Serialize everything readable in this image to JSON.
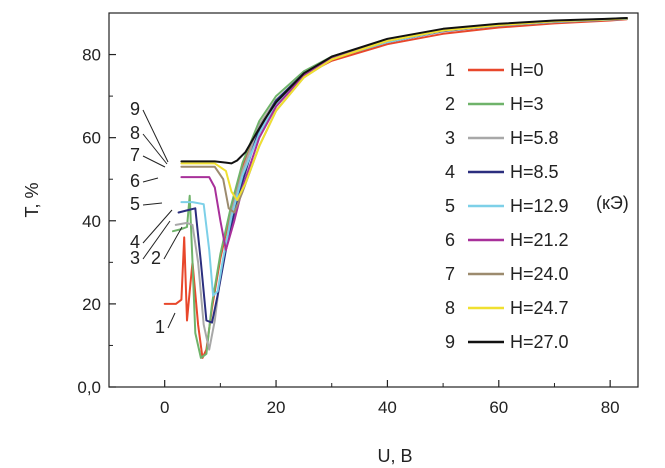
{
  "chart_data": {
    "type": "line",
    "title": "",
    "xlabel": "U, B",
    "ylabel": "T, %",
    "xlim": [
      -10,
      85
    ],
    "ylim": [
      0,
      90
    ],
    "x_ticks": [
      0,
      20,
      40,
      60,
      80
    ],
    "y_ticks": [
      0,
      20,
      40,
      60,
      80
    ],
    "x_tick_labels": [
      "0",
      "20",
      "40",
      "60",
      "80"
    ],
    "y_tick_labels": [
      "0,0",
      "20",
      "40",
      "60",
      "80"
    ],
    "unit_note": "(кЭ)",
    "grid": false,
    "legend_position": "right",
    "series": [
      {
        "name": "H=0",
        "number": "1",
        "color": "#e8472b",
        "x": [
          0,
          2,
          3,
          3.5,
          4,
          4.5,
          5,
          6,
          6.8,
          7.5,
          8.5,
          10,
          12,
          14,
          17,
          20,
          25,
          30,
          40,
          50,
          60,
          70,
          80,
          83
        ],
        "y": [
          20,
          20,
          21,
          36,
          16,
          23,
          30,
          15,
          7,
          9,
          19,
          31,
          43,
          53,
          63,
          69,
          75,
          78.5,
          82.5,
          85,
          86.5,
          87.5,
          88.2,
          88.5
        ]
      },
      {
        "name": "H=3",
        "number": "2",
        "color": "#6fb36a",
        "x": [
          1.5,
          3,
          4,
          4.5,
          5,
          5.5,
          6.5,
          7.5,
          8.5,
          10,
          12,
          14,
          17,
          20,
          25,
          30,
          40,
          50,
          60,
          70,
          80,
          83
        ],
        "y": [
          37.5,
          38,
          38.5,
          46,
          30,
          13,
          7,
          8,
          20,
          32,
          44,
          54,
          64,
          70,
          76,
          79.5,
          83.5,
          86,
          87.2,
          88,
          88.6,
          88.8
        ]
      },
      {
        "name": "H=5.8",
        "number": "3",
        "color": "#a8a8a8",
        "x": [
          2,
          4,
          5,
          6,
          7,
          8,
          9,
          10,
          12,
          14,
          17,
          20,
          25,
          30,
          40,
          50,
          60,
          70,
          80,
          83
        ],
        "y": [
          39,
          39.5,
          39,
          30,
          15,
          9,
          16,
          27,
          42,
          52,
          63,
          69,
          75.5,
          79,
          83,
          85.7,
          87,
          87.8,
          88.4,
          88.6
        ]
      },
      {
        "name": "H=8.5",
        "number": "4",
        "color": "#2b2e7e",
        "x": [
          2.5,
          4,
          5.5,
          6.5,
          7.5,
          8.5,
          9.5,
          11,
          13,
          15,
          17,
          20,
          25,
          30,
          40,
          50,
          60,
          70,
          80,
          83
        ],
        "y": [
          42,
          42.5,
          43,
          30,
          16,
          15.5,
          22,
          33,
          45,
          54,
          62,
          69,
          75.5,
          79,
          83,
          85.6,
          87,
          87.9,
          88.4,
          88.6
        ]
      },
      {
        "name": "H=12.9",
        "number": "5",
        "color": "#7dd0e8",
        "x": [
          3,
          5,
          7,
          8,
          8.7,
          9.5,
          10.5,
          12,
          14,
          17,
          20,
          25,
          30,
          40,
          50,
          60,
          70,
          80,
          83
        ],
        "y": [
          44.5,
          44.5,
          44,
          33,
          22,
          23,
          31,
          41,
          51,
          61,
          68,
          75,
          79,
          83,
          85.7,
          87,
          87.9,
          88.4,
          88.6
        ]
      },
      {
        "name": "H=21.2",
        "number": "6",
        "color": "#a8309a",
        "x": [
          3,
          6,
          8,
          9,
          10,
          11,
          12.5,
          14,
          17,
          20,
          25,
          30,
          40,
          50,
          60,
          70,
          80,
          83
        ],
        "y": [
          50.5,
          50.5,
          50.5,
          48,
          40,
          33,
          40,
          48,
          60,
          67.5,
          75,
          79,
          83.3,
          85.8,
          87.1,
          88,
          88.5,
          88.7
        ]
      },
      {
        "name": "H=24.0",
        "number": "7",
        "color": "#9c8b6e",
        "x": [
          3,
          6,
          9,
          10.5,
          11.5,
          12.5,
          14,
          17,
          20,
          25,
          30,
          40,
          50,
          60,
          70,
          80,
          83
        ],
        "y": [
          53,
          53,
          53,
          50,
          43,
          42,
          47,
          58,
          66.5,
          74.5,
          78.8,
          83.3,
          85.8,
          87.1,
          88,
          88.5,
          88.7
        ]
      },
      {
        "name": "H=24.7",
        "number": "8",
        "color": "#f0e030",
        "x": [
          3,
          6,
          9,
          11,
          12,
          13,
          14.5,
          17,
          20,
          25,
          30,
          40,
          50,
          60,
          70,
          80,
          83
        ],
        "y": [
          53.8,
          53.8,
          53.8,
          52,
          47,
          45,
          49,
          58,
          66.5,
          74.5,
          78.8,
          83.3,
          85.8,
          87.1,
          88,
          88.5,
          88.7
        ]
      },
      {
        "name": "H=27.0",
        "number": "9",
        "color": "#111111",
        "x": [
          3,
          6,
          9,
          11,
          12,
          13,
          14.5,
          16,
          18,
          20,
          25,
          30,
          40,
          50,
          60,
          70,
          80,
          83
        ],
        "y": [
          54.3,
          54.3,
          54.3,
          54,
          53.8,
          54.5,
          56.5,
          60,
          64.5,
          68.5,
          75.5,
          79.5,
          83.8,
          86.2,
          87.4,
          88.2,
          88.6,
          88.8
        ]
      }
    ]
  }
}
